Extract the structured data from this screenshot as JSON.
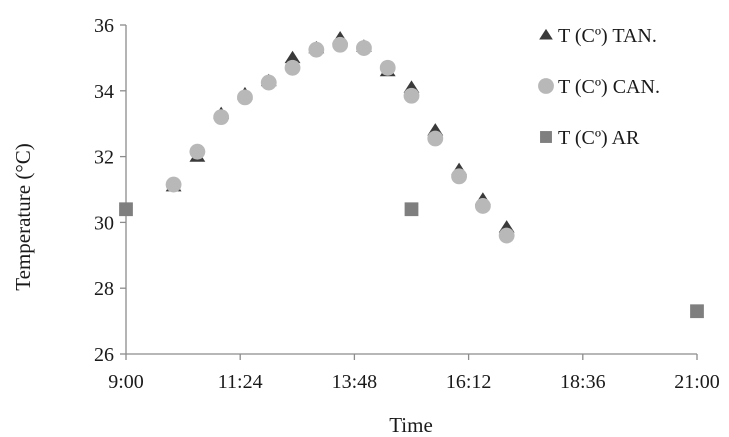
{
  "chart_data": {
    "type": "scatter",
    "xlabel": "Time",
    "ylabel": "Temperature (°C)",
    "xlim": [
      "9:00",
      "21:00"
    ],
    "ylim": [
      26,
      36
    ],
    "x_ticks": [
      "9:00",
      "11:24",
      "13:48",
      "16:12",
      "18:36",
      "21:00"
    ],
    "y_ticks": [
      "26",
      "28",
      "30",
      "32",
      "34",
      "36"
    ],
    "grid": false,
    "legend_position": "top-right",
    "series": [
      {
        "name": "T (Cº) TAN.",
        "marker": "triangle",
        "color": "#3a3a3a",
        "x": [
          "10:00",
          "10:30",
          "11:00",
          "11:30",
          "12:00",
          "12:30",
          "13:00",
          "13:30",
          "14:00",
          "14:30",
          "15:00",
          "15:30",
          "16:00",
          "16:30",
          "17:00"
        ],
        "y": [
          31.1,
          32.0,
          33.3,
          33.9,
          34.3,
          35.0,
          35.3,
          35.6,
          35.35,
          34.6,
          34.1,
          32.8,
          31.6,
          30.7,
          29.85
        ]
      },
      {
        "name": "T (Cº) CAN.",
        "marker": "circle",
        "color": "#b8b8b8",
        "x": [
          "10:00",
          "10:30",
          "11:00",
          "11:30",
          "12:00",
          "12:30",
          "13:00",
          "13:30",
          "14:00",
          "14:30",
          "15:00",
          "15:30",
          "16:00",
          "16:30",
          "17:00"
        ],
        "y": [
          31.15,
          32.15,
          33.2,
          33.8,
          34.25,
          34.7,
          35.25,
          35.4,
          35.3,
          34.7,
          33.85,
          32.55,
          31.4,
          30.5,
          29.6
        ]
      },
      {
        "name": "T (Cº) AR",
        "marker": "square",
        "color": "#7f7f7f",
        "x": [
          "9:00",
          "15:00",
          "21:00"
        ],
        "y": [
          30.4,
          30.4,
          27.3
        ]
      }
    ]
  }
}
